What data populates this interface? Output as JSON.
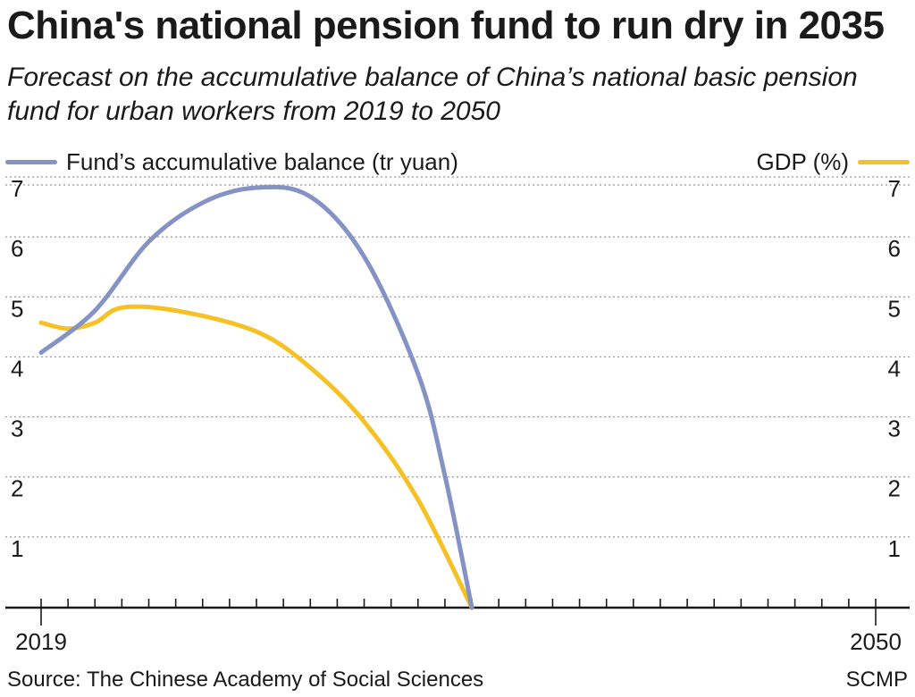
{
  "header": {
    "title": "China's national pension fund to run dry in 2035",
    "subtitle": "Forecast on the accumulative balance of China’s national basic pension fund for urban workers from 2019 to 2050"
  },
  "legend": {
    "series_a": "Fund’s accumulative balance (tr yuan)",
    "series_b": "GDP (%)"
  },
  "colors": {
    "series_a": "#8592c4",
    "series_b": "#f5c125",
    "grid": "#999999",
    "axis": "#1a1a1a"
  },
  "footer": {
    "source": "Source: The Chinese Academy of Social Sciences",
    "credit": "SCMP"
  },
  "chart_data": {
    "type": "line",
    "title": "China's national pension fund to run dry in 2035",
    "subtitle": "Forecast on the accumulative balance of China’s national basic pension fund for urban workers from 2019 to 2050",
    "xlabel": "",
    "ylabel": "",
    "xlim": [
      2019,
      2050
    ],
    "ylim": [
      0,
      7
    ],
    "yticks": [
      1,
      2,
      3,
      4,
      5,
      6,
      7
    ],
    "x_tick_labels": [
      {
        "year": 2019,
        "label": "2019"
      },
      {
        "year": 2050,
        "label": "2050"
      }
    ],
    "grid": true,
    "legend_position": "top",
    "series": [
      {
        "name": "Fund’s accumulative balance (tr yuan)",
        "axis": "left",
        "points": [
          [
            2019,
            4.25
          ],
          [
            2021,
            4.95
          ],
          [
            2023,
            6.1
          ],
          [
            2025,
            6.75
          ],
          [
            2027,
            7.0
          ],
          [
            2029,
            6.85
          ],
          [
            2031,
            5.85
          ],
          [
            2033,
            3.9
          ],
          [
            2034,
            2.2
          ],
          [
            2035,
            0.0
          ]
        ]
      },
      {
        "name": "GDP (%)",
        "axis": "right",
        "points": [
          [
            2019,
            4.75
          ],
          [
            2020,
            4.65
          ],
          [
            2021,
            4.75
          ],
          [
            2022,
            5.0
          ],
          [
            2024,
            4.95
          ],
          [
            2027,
            4.6
          ],
          [
            2029,
            4.0
          ],
          [
            2031,
            3.1
          ],
          [
            2033,
            1.8
          ],
          [
            2035,
            0.0
          ]
        ]
      }
    ]
  }
}
